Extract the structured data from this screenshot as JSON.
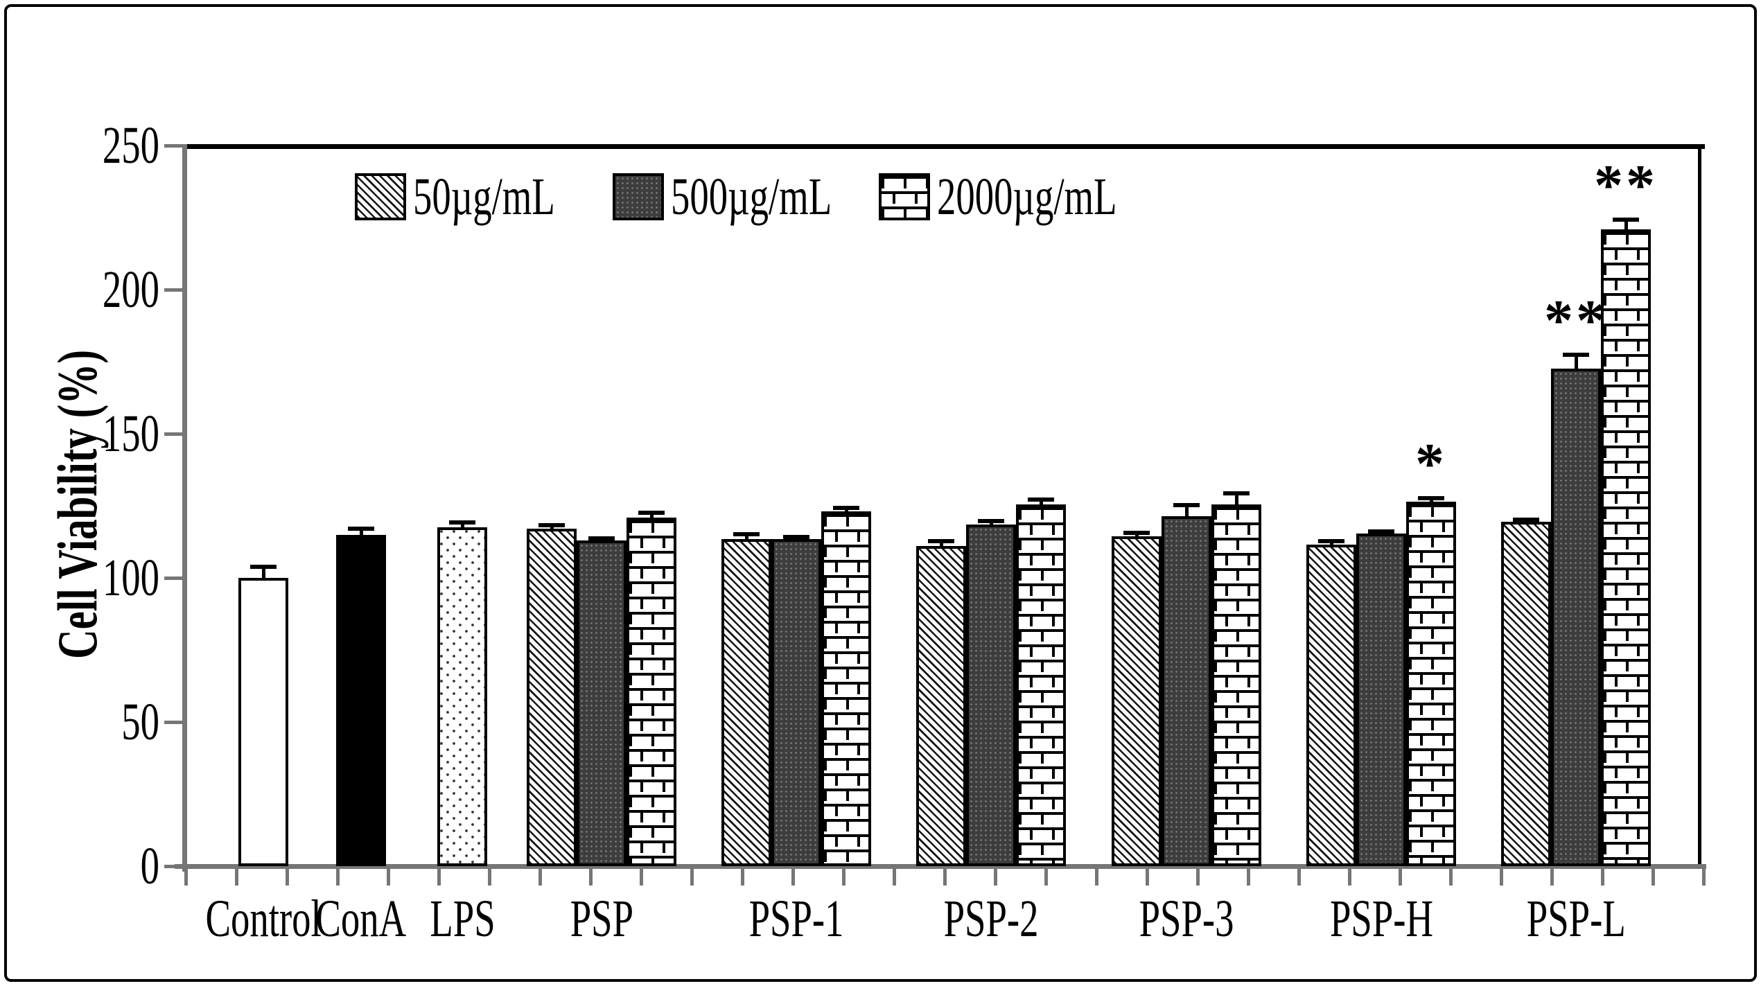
{
  "colors": {
    "background": "#ffffff",
    "frame_border": "#000000",
    "axis_gray": "#767676",
    "bar_outline": "#000000",
    "dark_bar_fill": "#3d3d3d"
  },
  "axes": {
    "y_title": "Cell Viability (%)",
    "y_ticks": [
      0,
      50,
      100,
      150,
      200,
      250
    ],
    "x_labels": [
      "Control",
      "ConA",
      "LPS",
      "PSP",
      "PSP-1",
      "PSP-2",
      "PSP-3",
      "PSP-H",
      "PSP-L"
    ]
  },
  "legend": [
    {
      "label": "50µg/mL",
      "pattern": "diagonal",
      "swatch": "diagonal-hatch-swatch"
    },
    {
      "label": "500µg/mL",
      "pattern": "dark-dots",
      "swatch": "dark-dotted-swatch"
    },
    {
      "label": "2000µg/mL",
      "pattern": "brick",
      "swatch": "brick-pattern-swatch"
    }
  ],
  "chart_data": {
    "type": "bar",
    "title": "",
    "xlabel": "",
    "ylabel": "Cell Viability (%)",
    "ylim": [
      0,
      250
    ],
    "y_ticks": [
      0,
      50,
      100,
      150,
      200,
      250
    ],
    "grid": false,
    "legend_position": "top-left-inside",
    "series_legend": [
      "50µg/mL",
      "500µg/mL",
      "2000µg/mL"
    ],
    "categories": [
      "Control",
      "ConA",
      "LPS",
      "PSP",
      "PSP-1",
      "PSP-2",
      "PSP-3",
      "PSP-H",
      "PSP-L"
    ],
    "error_bars": "upper-only",
    "groups": [
      {
        "label": "Control",
        "bars": [
          {
            "series": "Control",
            "pattern": "plain",
            "value": 100,
            "error": 4,
            "sig": ""
          }
        ]
      },
      {
        "label": "ConA",
        "bars": [
          {
            "series": "ConA",
            "pattern": "solid",
            "value": 115,
            "error": 2.5,
            "sig": ""
          }
        ]
      },
      {
        "label": "LPS",
        "bars": [
          {
            "series": "LPS",
            "pattern": "sparse-dots",
            "value": 117.5,
            "error": 2,
            "sig": ""
          }
        ]
      },
      {
        "label": "PSP",
        "bars": [
          {
            "series": "50µg/mL",
            "pattern": "diagonal",
            "value": 117,
            "error": 1.5,
            "sig": ""
          },
          {
            "series": "500µg/mL",
            "pattern": "dark-dots",
            "value": 113,
            "error": 1,
            "sig": ""
          },
          {
            "series": "2000µg/mL",
            "pattern": "brick",
            "value": 121,
            "error": 2,
            "sig": ""
          }
        ]
      },
      {
        "label": "PSP-1",
        "bars": [
          {
            "series": "50µg/mL",
            "pattern": "diagonal",
            "value": 113.5,
            "error": 2,
            "sig": ""
          },
          {
            "series": "500µg/mL",
            "pattern": "dark-dots",
            "value": 113.5,
            "error": 1,
            "sig": ""
          },
          {
            "series": "2000µg/mL",
            "pattern": "brick",
            "value": 123,
            "error": 1.5,
            "sig": ""
          }
        ]
      },
      {
        "label": "PSP-2",
        "bars": [
          {
            "series": "50µg/mL",
            "pattern": "diagonal",
            "value": 111,
            "error": 2,
            "sig": ""
          },
          {
            "series": "500µg/mL",
            "pattern": "dark-dots",
            "value": 118.5,
            "error": 1.5,
            "sig": ""
          },
          {
            "series": "2000µg/mL",
            "pattern": "brick",
            "value": 125.5,
            "error": 2,
            "sig": ""
          }
        ]
      },
      {
        "label": "PSP-3",
        "bars": [
          {
            "series": "50µg/mL",
            "pattern": "diagonal",
            "value": 114.5,
            "error": 1.5,
            "sig": ""
          },
          {
            "series": "500µg/mL",
            "pattern": "dark-dots",
            "value": 121.5,
            "error": 4,
            "sig": ""
          },
          {
            "series": "2000µg/mL",
            "pattern": "brick",
            "value": 125.5,
            "error": 4,
            "sig": ""
          }
        ]
      },
      {
        "label": "PSP-H",
        "bars": [
          {
            "series": "50µg/mL",
            "pattern": "diagonal",
            "value": 111.5,
            "error": 1.5,
            "sig": ""
          },
          {
            "series": "500µg/mL",
            "pattern": "dark-dots",
            "value": 115.5,
            "error": 1,
            "sig": ""
          },
          {
            "series": "2000µg/mL",
            "pattern": "brick",
            "value": 126.5,
            "error": 1.5,
            "sig": "*"
          }
        ]
      },
      {
        "label": "PSP-L",
        "bars": [
          {
            "series": "50µg/mL",
            "pattern": "diagonal",
            "value": 119.5,
            "error": 1,
            "sig": ""
          },
          {
            "series": "500µg/mL",
            "pattern": "dark-dots",
            "value": 172.5,
            "error": 5,
            "sig": "**"
          },
          {
            "series": "2000µg/mL",
            "pattern": "brick",
            "value": 221,
            "error": 3.5,
            "sig": "**"
          }
        ]
      }
    ]
  }
}
